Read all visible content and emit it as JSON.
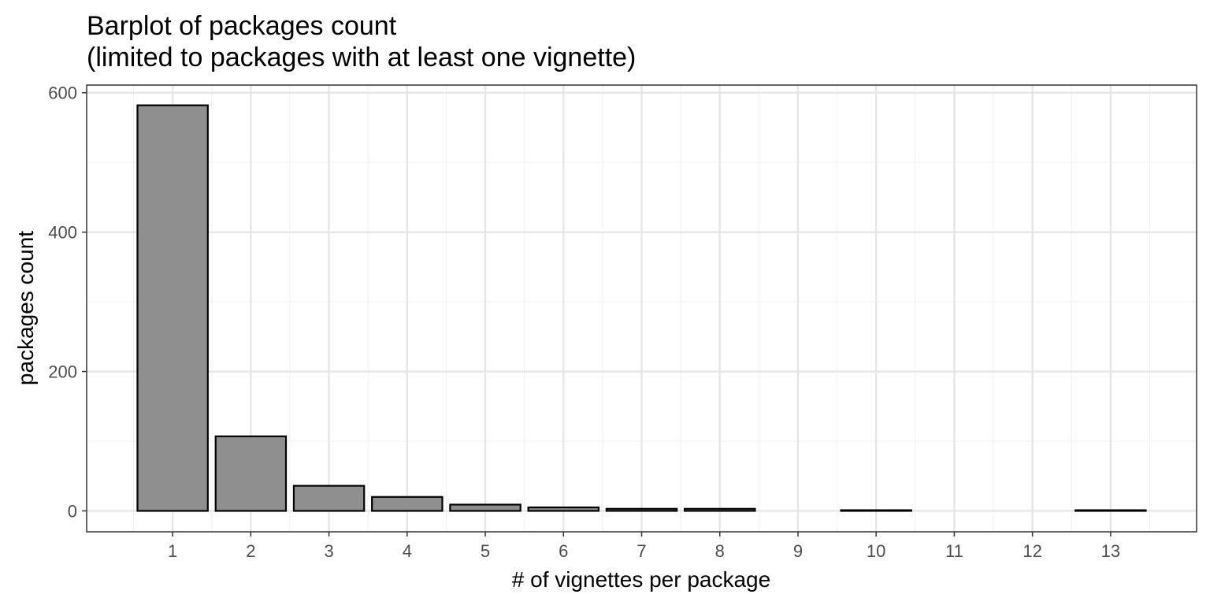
{
  "chart_data": {
    "type": "bar",
    "title": "Barplot of packages count",
    "subtitle": "(limited to packages with at least one vignette)",
    "xlabel": "# of vignettes per package",
    "ylabel": "packages count",
    "x": [
      1,
      2,
      3,
      4,
      5,
      6,
      7,
      8,
      10,
      13
    ],
    "values": [
      582,
      107,
      36,
      20,
      9,
      5,
      3,
      3,
      1,
      1
    ],
    "x_ticks": [
      "1",
      "2",
      "3",
      "4",
      "5",
      "6",
      "7",
      "8",
      "9",
      "10",
      "11",
      "12",
      "13"
    ],
    "y_ticks": [
      "0",
      "200",
      "400",
      "600"
    ],
    "xlim": [
      -0.1,
      14.1
    ],
    "ylim": [
      -30,
      611
    ],
    "grid": true,
    "colors": {
      "bar_fill": "#8f8f8f",
      "bar_stroke": "#000000",
      "grid_major": "#e6e6e6",
      "grid_minor": "#f2f2f2",
      "panel_border": "#333333",
      "tick_text": "#4d4d4d",
      "text": "#000000"
    }
  }
}
